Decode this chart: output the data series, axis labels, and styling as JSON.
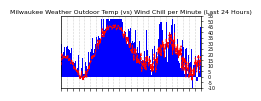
{
  "title": "Milwaukee Weather Outdoor Temp (vs) Wind Chill per Minute (Last 24 Hours)",
  "title_fontsize": 4.5,
  "title_color": "#000000",
  "background_color": "#ffffff",
  "plot_bg_color": "#ffffff",
  "bar_color": "#0000ff",
  "line_color": "#ff0000",
  "line_style": "--",
  "line_width": 0.6,
  "bar_width": 1.0,
  "ylim": [
    -10,
    55
  ],
  "yticks": [
    -10,
    -5,
    0,
    5,
    10,
    15,
    20,
    25,
    30,
    35,
    40,
    45,
    50,
    55
  ],
  "ytick_fontsize": 3.5,
  "xtick_fontsize": 3.0,
  "grid_color": "#aaaaaa",
  "grid_style": ":",
  "grid_linewidth": 0.4,
  "n_points": 1440,
  "num_xticks": 25
}
